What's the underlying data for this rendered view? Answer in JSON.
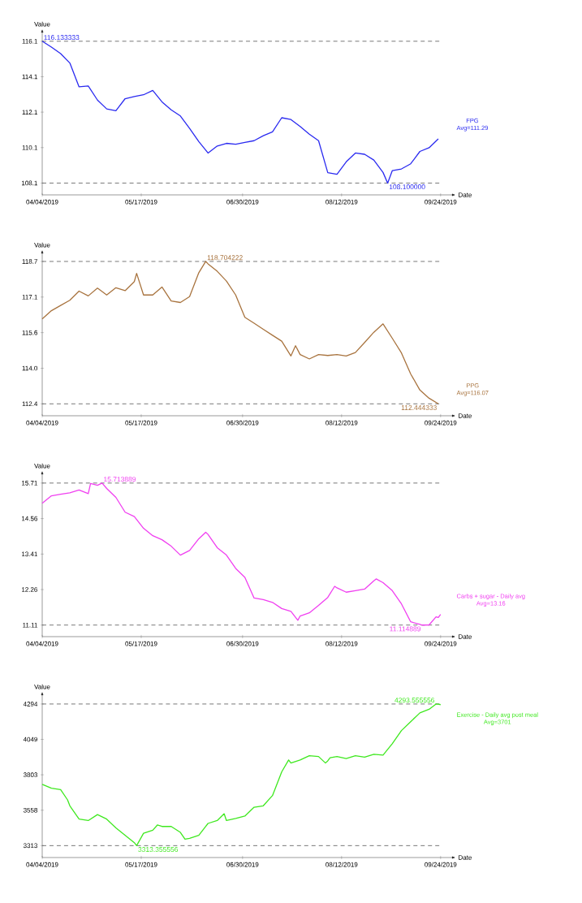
{
  "chart_data": [
    {
      "type": "line",
      "xlabel": "Date",
      "ylabel": "Value",
      "x": [
        "2019-04-04",
        "2019-04-08",
        "2019-04-12",
        "2019-04-16",
        "2019-04-20",
        "2019-04-24",
        "2019-04-28",
        "2019-05-02",
        "2019-05-06",
        "2019-05-10",
        "2019-05-14",
        "2019-05-18",
        "2019-05-22",
        "2019-05-26",
        "2019-05-30",
        "2019-06-03",
        "2019-06-07",
        "2019-06-11",
        "2019-06-15",
        "2019-06-19",
        "2019-06-23",
        "2019-06-27",
        "2019-07-01",
        "2019-07-05",
        "2019-07-09",
        "2019-07-13",
        "2019-07-17",
        "2019-07-21",
        "2019-07-25",
        "2019-07-29",
        "2019-08-02",
        "2019-08-06",
        "2019-08-10",
        "2019-08-14",
        "2019-08-18",
        "2019-08-22",
        "2019-08-26",
        "2019-08-30",
        "2019-09-01",
        "2019-09-03",
        "2019-09-07",
        "2019-09-11",
        "2019-09-15",
        "2019-09-19",
        "2019-09-23"
      ],
      "series": [
        {
          "name": "FPG",
          "color": "#2a2af0",
          "values": [
            116.133333,
            115.8,
            115.43,
            114.9,
            113.55,
            113.6,
            112.8,
            112.3,
            112.2,
            112.88,
            113.0,
            113.1,
            113.35,
            112.7,
            112.25,
            111.9,
            111.2,
            110.45,
            109.8,
            110.2,
            110.35,
            110.3,
            110.4,
            110.5,
            110.78,
            111.0,
            111.8,
            111.7,
            111.3,
            110.87,
            110.5,
            108.69,
            108.6,
            109.3,
            109.8,
            109.73,
            109.4,
            108.7,
            108.1,
            108.8,
            108.9,
            109.19,
            109.89,
            110.1,
            110.6
          ]
        }
      ],
      "xlim": [
        "2019-04-04",
        "2019-09-29"
      ],
      "xticks": [
        {
          "value": "2019-04-04",
          "label": "04/04/2019"
        },
        {
          "value": "2019-05-17",
          "label": "05/17/2019"
        },
        {
          "value": "2019-06-30",
          "label": "06/30/2019"
        },
        {
          "value": "2019-08-12",
          "label": "08/12/2019"
        },
        {
          "value": "2019-09-24",
          "label": "09/24/2019"
        }
      ],
      "ylim": [
        107.43,
        116.63
      ],
      "yticks": [
        {
          "value": 108.1,
          "label": "108.1"
        },
        {
          "value": 110.108333,
          "label": "110.1"
        },
        {
          "value": 112.116667,
          "label": "112.1"
        },
        {
          "value": 114.125,
          "label": "114.1"
        },
        {
          "value": 116.133333,
          "label": "116.1"
        }
      ],
      "ref_lines": [
        {
          "axis": "y",
          "value": 116.133333,
          "color": "#555555",
          "line_style": "dashed"
        },
        {
          "axis": "y",
          "value": 108.1,
          "color": "#555555",
          "line_style": "dashed"
        }
      ],
      "annotations": [
        {
          "text": "116.133333",
          "x": "2019-04-04",
          "y": 116.133333
        },
        {
          "text": "108.100000",
          "x": "2019-09-01",
          "y": 108.1
        },
        "Avg=111.29"
      ]
    },
    {
      "type": "line",
      "xlabel": "Date",
      "ylabel": "Value",
      "x": [
        "2019-04-04",
        "2019-04-08",
        "2019-04-12",
        "2019-04-16",
        "2019-04-20",
        "2019-04-24",
        "2019-04-28",
        "2019-05-02",
        "2019-05-06",
        "2019-05-10",
        "2019-05-14",
        "2019-05-15",
        "2019-05-18",
        "2019-05-22",
        "2019-05-26",
        "2019-05-30",
        "2019-06-03",
        "2019-06-07",
        "2019-06-11",
        "2019-06-14",
        "2019-06-15",
        "2019-06-19",
        "2019-06-23",
        "2019-06-27",
        "2019-07-01",
        "2019-07-05",
        "2019-07-09",
        "2019-07-13",
        "2019-07-17",
        "2019-07-21",
        "2019-07-23",
        "2019-07-25",
        "2019-07-29",
        "2019-08-02",
        "2019-08-06",
        "2019-08-10",
        "2019-08-14",
        "2019-08-18",
        "2019-08-22",
        "2019-08-26",
        "2019-08-30",
        "2019-09-03",
        "2019-09-07",
        "2019-09-11",
        "2019-09-15",
        "2019-09-19",
        "2019-09-23"
      ],
      "series": [
        {
          "name": "PPG",
          "color": "#a8733e",
          "values": [
            116.18,
            116.54,
            116.77,
            117.0,
            117.4,
            117.19,
            117.53,
            117.23,
            117.55,
            117.42,
            117.82,
            118.18,
            117.23,
            117.23,
            117.58,
            116.97,
            116.9,
            117.16,
            118.21,
            118.704222,
            118.6,
            118.27,
            117.84,
            117.23,
            116.25,
            115.99,
            115.72,
            115.46,
            115.2,
            114.55,
            115.0,
            114.61,
            114.42,
            114.61,
            114.57,
            114.61,
            114.55,
            114.7,
            115.14,
            115.59,
            115.96,
            115.33,
            114.68,
            113.76,
            113.05,
            112.69,
            112.444333
          ]
        }
      ],
      "xlim": [
        "2019-04-04",
        "2019-09-29"
      ],
      "xticks": [
        {
          "value": "2019-04-04",
          "label": "04/04/2019"
        },
        {
          "value": "2019-05-17",
          "label": "05/17/2019"
        },
        {
          "value": "2019-06-30",
          "label": "06/30/2019"
        },
        {
          "value": "2019-08-12",
          "label": "08/12/2019"
        },
        {
          "value": "2019-09-24",
          "label": "09/24/2019"
        }
      ],
      "ylim": [
        111.92,
        119.06
      ],
      "yticks": [
        {
          "value": 112.444333,
          "label": "112.4"
        },
        {
          "value": 114.009305,
          "label": "114.0"
        },
        {
          "value": 115.574278,
          "label": "115.6"
        },
        {
          "value": 117.13925,
          "label": "117.1"
        },
        {
          "value": 118.704222,
          "label": "118.7"
        }
      ],
      "ref_lines": [
        {
          "axis": "y",
          "value": 118.704222,
          "color": "#555555",
          "line_style": "dashed"
        },
        {
          "axis": "y",
          "value": 112.444333,
          "color": "#555555",
          "line_style": "dashed"
        }
      ],
      "annotations": [
        {
          "text": "118.704222",
          "x": "2019-06-14",
          "y": 118.704222
        },
        {
          "text": "112.444333",
          "x": "2019-09-23",
          "y": 112.444333
        },
        "Avg=116.07"
      ]
    },
    {
      "type": "line",
      "xlabel": "Date",
      "ylabel": "Value",
      "x": [
        "2019-04-04",
        "2019-04-08",
        "2019-04-12",
        "2019-04-16",
        "2019-04-20",
        "2019-04-24",
        "2019-04-25",
        "2019-04-28",
        "2019-04-30",
        "2019-05-02",
        "2019-05-06",
        "2019-05-10",
        "2019-05-14",
        "2019-05-18",
        "2019-05-22",
        "2019-05-26",
        "2019-05-30",
        "2019-06-03",
        "2019-06-07",
        "2019-06-11",
        "2019-06-14",
        "2019-06-15",
        "2019-06-19",
        "2019-06-23",
        "2019-06-27",
        "2019-07-01",
        "2019-07-05",
        "2019-07-09",
        "2019-07-13",
        "2019-07-17",
        "2019-07-21",
        "2019-07-24",
        "2019-07-25",
        "2019-07-29",
        "2019-08-02",
        "2019-08-06",
        "2019-08-09",
        "2019-08-10",
        "2019-08-14",
        "2019-08-18",
        "2019-08-22",
        "2019-08-26",
        "2019-08-27",
        "2019-08-30",
        "2019-09-03",
        "2019-09-07",
        "2019-09-11",
        "2019-09-15",
        "2019-09-16",
        "2019-09-19",
        "2019-09-22",
        "2019-09-23",
        "2019-09-24"
      ],
      "series": [
        {
          "name": "Carbs + sugar - Daily avg",
          "color": "#f03ff0",
          "values": [
            15.06,
            15.3,
            15.35,
            15.4,
            15.49,
            15.37,
            15.7,
            15.64,
            15.713889,
            15.54,
            15.25,
            14.77,
            14.63,
            14.25,
            14.01,
            13.88,
            13.67,
            13.38,
            13.53,
            13.91,
            14.12,
            14.05,
            13.62,
            13.38,
            12.95,
            12.66,
            11.99,
            11.94,
            11.85,
            11.65,
            11.56,
            11.27,
            11.41,
            11.51,
            11.75,
            12.01,
            12.37,
            12.32,
            12.18,
            12.23,
            12.28,
            12.55,
            12.61,
            12.49,
            12.23,
            11.8,
            11.22,
            11.14,
            11.114889,
            11.12,
            11.38,
            11.36,
            11.46
          ]
        }
      ],
      "xlim": [
        "2019-04-04",
        "2019-09-29"
      ],
      "xticks": [
        {
          "value": "2019-04-04",
          "label": "04/04/2019"
        },
        {
          "value": "2019-05-17",
          "label": "05/17/2019"
        },
        {
          "value": "2019-06-30",
          "label": "06/30/2019"
        },
        {
          "value": "2019-08-12",
          "label": "08/12/2019"
        },
        {
          "value": "2019-09-24",
          "label": "09/24/2019"
        }
      ],
      "ylim": [
        10.74,
        16.0
      ],
      "yticks": [
        {
          "value": 11.114889,
          "label": "11.11"
        },
        {
          "value": 12.264639,
          "label": "12.26"
        },
        {
          "value": 13.414389,
          "label": "13.41"
        },
        {
          "value": 14.564139,
          "label": "14.56"
        },
        {
          "value": 15.713889,
          "label": "15.71"
        }
      ],
      "ref_lines": [
        {
          "axis": "y",
          "value": 15.713889,
          "color": "#555555",
          "line_style": "dashed"
        },
        {
          "axis": "y",
          "value": 11.114889,
          "color": "#555555",
          "line_style": "dashed"
        }
      ],
      "annotations": [
        {
          "text": "15.713889",
          "x": "2019-04-30",
          "y": 15.713889
        },
        {
          "text": "11.114889",
          "x": "2019-09-16",
          "y": 11.114889
        },
        "Avg=13.16"
      ]
    },
    {
      "type": "line",
      "xlabel": "Date",
      "ylabel": "Value",
      "x": [
        "2019-04-04",
        "2019-04-08",
        "2019-04-12",
        "2019-04-15",
        "2019-04-16",
        "2019-04-20",
        "2019-04-24",
        "2019-04-28",
        "2019-05-02",
        "2019-05-06",
        "2019-05-10",
        "2019-05-14",
        "2019-05-15",
        "2019-05-18",
        "2019-05-22",
        "2019-05-24",
        "2019-05-26",
        "2019-05-30",
        "2019-06-03",
        "2019-06-05",
        "2019-06-07",
        "2019-06-11",
        "2019-06-15",
        "2019-06-19",
        "2019-06-22",
        "2019-06-23",
        "2019-06-27",
        "2019-07-01",
        "2019-07-05",
        "2019-07-09",
        "2019-07-13",
        "2019-07-17",
        "2019-07-20",
        "2019-07-21",
        "2019-07-25",
        "2019-07-29",
        "2019-08-02",
        "2019-08-05",
        "2019-08-06",
        "2019-08-07",
        "2019-08-10",
        "2019-08-14",
        "2019-08-18",
        "2019-08-22",
        "2019-08-26",
        "2019-08-30",
        "2019-09-03",
        "2019-09-07",
        "2019-09-11",
        "2019-09-15",
        "2019-09-19",
        "2019-09-22",
        "2019-09-23",
        "2019-09-24"
      ],
      "series": [
        {
          "name": "Exercise - Daily avg post meal",
          "color": "#3ee81e",
          "values": [
            3738,
            3711,
            3701,
            3630,
            3589,
            3497,
            3487,
            3528,
            3497,
            3436,
            3385,
            3334,
            3313.355556,
            3399,
            3420,
            3456,
            3446,
            3446,
            3405,
            3358,
            3364,
            3385,
            3467,
            3487,
            3534,
            3487,
            3501,
            3518,
            3579,
            3589,
            3660,
            3824,
            3906,
            3885,
            3906,
            3936,
            3930,
            3885,
            3900,
            3922,
            3930,
            3916,
            3936,
            3926,
            3946,
            3940,
            4018,
            4110,
            4171,
            4232,
            4257,
            4293.555556,
            4292,
            4289
          ]
        }
      ],
      "xlim": [
        "2019-04-04",
        "2019-09-29"
      ],
      "xticks": [
        {
          "value": "2019-04-04",
          "label": "04/04/2019"
        },
        {
          "value": "2019-05-17",
          "label": "05/17/2019"
        },
        {
          "value": "2019-06-30",
          "label": "06/30/2019"
        },
        {
          "value": "2019-08-12",
          "label": "08/12/2019"
        },
        {
          "value": "2019-09-24",
          "label": "09/24/2019"
        }
      ],
      "ylim": [
        3231,
        4355
      ],
      "yticks": [
        {
          "value": 3313.355556,
          "label": "3313"
        },
        {
          "value": 3558.405556,
          "label": "3558"
        },
        {
          "value": 3803.455556,
          "label": "3803"
        },
        {
          "value": 4048.505556,
          "label": "4049"
        },
        {
          "value": 4293.555556,
          "label": "4294"
        }
      ],
      "ref_lines": [
        {
          "axis": "y",
          "value": 4293.555556,
          "color": "#555555",
          "line_style": "dashed"
        },
        {
          "axis": "y",
          "value": 3313.355556,
          "color": "#555555",
          "line_style": "dashed"
        }
      ],
      "annotations": [
        {
          "text": "3313.355556",
          "x": "2019-05-15",
          "y": 3313.355556
        },
        {
          "text": "4293.555556",
          "x": "2019-09-22",
          "y": 4293.555556
        },
        "Avg=3701"
      ]
    }
  ]
}
